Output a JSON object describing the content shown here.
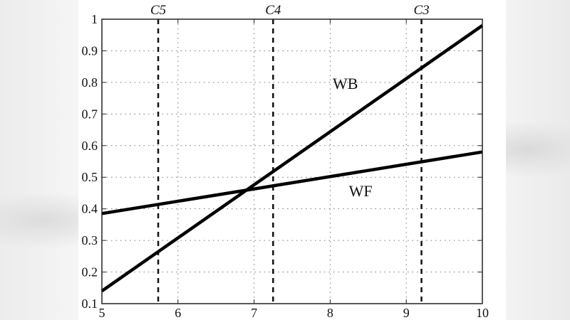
{
  "chart_data": {
    "type": "line",
    "title": "",
    "xlabel": "",
    "ylabel": "",
    "xlim": [
      5,
      10
    ],
    "ylim": [
      0.1,
      1.0
    ],
    "grid": true,
    "x_ticks": [
      "5",
      "6",
      "7",
      "8",
      "9",
      "10"
    ],
    "y_ticks": [
      "0.1",
      "0.2",
      "0.3",
      "0.4",
      "0.5",
      "0.6",
      "0.7",
      "0.8",
      "0.9",
      "1"
    ],
    "series": [
      {
        "name": "WB",
        "x": [
          5,
          10
        ],
        "values": [
          0.14,
          0.98
        ]
      },
      {
        "name": "WF",
        "x": [
          5,
          10
        ],
        "values": [
          0.385,
          0.58
        ]
      }
    ],
    "vertical_markers": [
      {
        "label": "C5",
        "x": 5.74
      },
      {
        "label": "C4",
        "x": 7.25
      },
      {
        "label": "C3",
        "x": 9.2
      }
    ],
    "annotations": [
      {
        "text": "WB",
        "x": 8.2,
        "y": 0.78
      },
      {
        "text": "WF",
        "x": 8.4,
        "y": 0.44
      }
    ],
    "legend": "none"
  }
}
